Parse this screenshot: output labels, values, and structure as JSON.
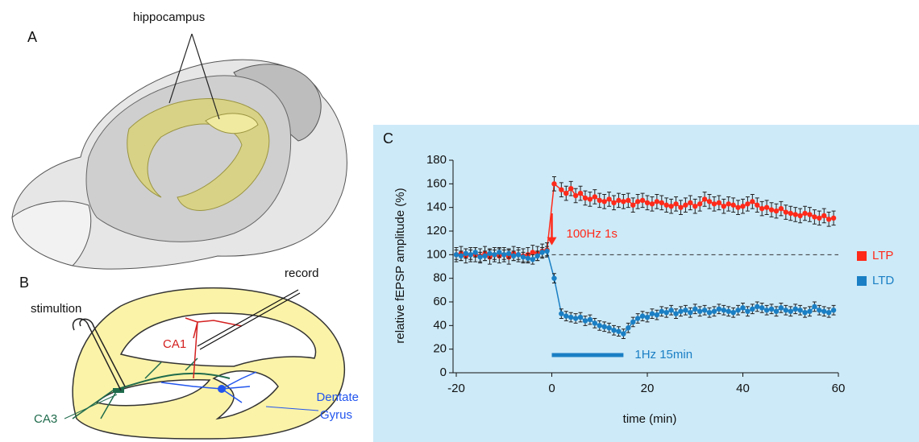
{
  "panels": {
    "a": {
      "label": "A",
      "annotation": "hippocampus"
    },
    "b": {
      "label": "B",
      "record": "record",
      "stimulation": "stimultion",
      "ca1": "CA1",
      "ca3": "CA3",
      "dentate": [
        "Dentate",
        "Gyrus"
      ]
    }
  },
  "chart_data": {
    "type": "line",
    "panel_label": "C",
    "x_label": "time (min)",
    "y_label": "relative fEPSP amplitude (%)",
    "xlim": [
      -20,
      60
    ],
    "xticks": [
      -20,
      0,
      20,
      40,
      60
    ],
    "ylim": [
      0,
      180
    ],
    "yticks": [
      0,
      20,
      40,
      60,
      80,
      100,
      120,
      140,
      160,
      180
    ],
    "x": [
      -20,
      -19,
      -18,
      -17,
      -16,
      -15,
      -14,
      -13,
      -12,
      -11,
      -10,
      -9,
      -8,
      -7,
      -6,
      -5,
      -4,
      -3,
      -2,
      -1,
      0.5,
      2,
      3,
      4,
      5,
      6,
      7,
      8,
      9,
      10,
      11,
      12,
      13,
      14,
      15,
      16,
      17,
      18,
      19,
      20,
      21,
      22,
      23,
      24,
      25,
      26,
      27,
      28,
      29,
      30,
      31,
      32,
      33,
      34,
      35,
      36,
      37,
      38,
      39,
      40,
      41,
      42,
      43,
      44,
      45,
      46,
      47,
      48,
      49,
      50,
      51,
      52,
      53,
      54,
      55,
      56,
      57,
      58,
      59
    ],
    "series": [
      {
        "name": "LTP",
        "color": "#ff2a1a",
        "error": 6,
        "values": [
          100,
          101,
          99,
          100,
          100,
          99,
          101,
          98,
          100,
          99,
          100,
          98,
          101,
          100,
          99,
          100,
          102,
          101,
          103,
          104,
          160,
          155,
          152,
          156,
          150,
          152,
          148,
          147,
          149,
          146,
          145,
          147,
          144,
          146,
          145,
          146,
          142,
          145,
          146,
          144,
          143,
          145,
          144,
          142,
          141,
          143,
          140,
          142,
          144,
          141,
          143,
          147,
          145,
          143,
          144,
          141,
          143,
          142,
          140,
          141,
          143,
          145,
          142,
          139,
          140,
          138,
          137,
          139,
          136,
          135,
          134,
          133,
          135,
          134,
          132,
          131,
          133,
          130,
          131
        ]
      },
      {
        "name": "LTD",
        "color": "#1a7fc4",
        "error": 4,
        "values": [
          100,
          99,
          101,
          100,
          102,
          98,
          99,
          101,
          100,
          102,
          100,
          101,
          99,
          100,
          98,
          97,
          96,
          99,
          102,
          103,
          80,
          50,
          48,
          47,
          46,
          47,
          44,
          45,
          42,
          40,
          39,
          38,
          36,
          35,
          33,
          38,
          43,
          46,
          48,
          47,
          50,
          49,
          52,
          51,
          53,
          50,
          52,
          53,
          51,
          54,
          52,
          53,
          51,
          52,
          54,
          53,
          52,
          51,
          53,
          55,
          52,
          54,
          56,
          55,
          53,
          54,
          52,
          55,
          53,
          52,
          54,
          53,
          51,
          52,
          56,
          53,
          52,
          51,
          53
        ]
      }
    ],
    "reference_line": 100,
    "annotations": [
      {
        "text": "100Hz 1s",
        "x": 0,
        "y": [
          135,
          108
        ],
        "color": "#ff2a1a"
      },
      {
        "text": "1Hz 15min",
        "x": [
          0,
          15
        ],
        "y": 15,
        "color": "#1a7fc4"
      }
    ]
  }
}
